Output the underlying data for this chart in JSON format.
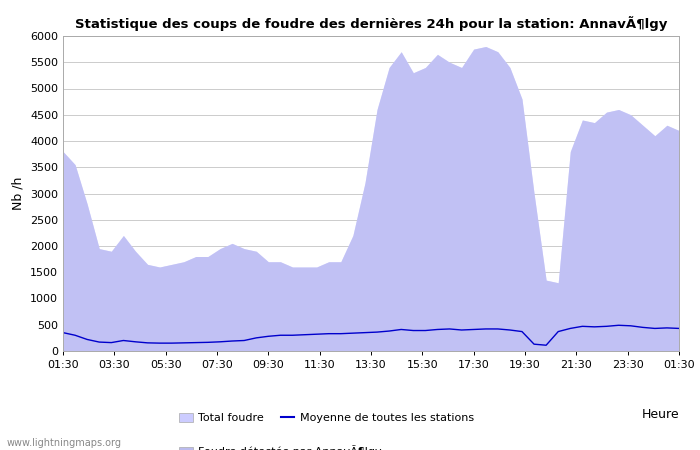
{
  "title": "Statistique des coups de foudre des dernières 24h pour la station: AnnavÃ¶lgy",
  "ylabel": "Nb /h",
  "xlabel_right": "Heure",
  "watermark": "www.lightningmaps.org",
  "x_labels": [
    "01:30",
    "03:30",
    "05:30",
    "07:30",
    "09:30",
    "11:30",
    "13:30",
    "15:30",
    "17:30",
    "19:30",
    "21:30",
    "23:30",
    "01:30"
  ],
  "ylim": [
    0,
    6000
  ],
  "yticks": [
    0,
    500,
    1000,
    1500,
    2000,
    2500,
    3000,
    3500,
    4000,
    4500,
    5000,
    5500,
    6000
  ],
  "bg_color": "#ffffff",
  "plot_bg_color": "#ffffff",
  "grid_color": "#cccccc",
  "fill_total_color": "#ccccff",
  "fill_local_color": "#bbbbee",
  "line_color": "#0000cc",
  "legend_total": "Total foudre",
  "legend_mean": "Moyenne de toutes les stations",
  "legend_local": "Foudre détectée par AnnavÃ¶lgy",
  "total_foudre": [
    3800,
    3550,
    2800,
    1950,
    1900,
    2200,
    1900,
    1650,
    1600,
    1650,
    1700,
    1800,
    1800,
    1950,
    2050,
    1950,
    1900,
    1700,
    1700,
    1600,
    1600,
    1600,
    1700,
    1700,
    2200,
    3200,
    4600,
    5400,
    5700,
    5300,
    5400,
    5650,
    5500,
    5400,
    5750,
    5800,
    5700,
    5400,
    4800,
    3000,
    1350,
    1300,
    3800,
    4400,
    4350,
    4550,
    4600,
    4500,
    4300,
    4100,
    4300,
    4200
  ],
  "local_foudre": [
    3800,
    3550,
    2800,
    1950,
    1900,
    2200,
    1900,
    1650,
    1600,
    1650,
    1700,
    1800,
    1800,
    1950,
    2050,
    1950,
    1900,
    1700,
    1700,
    1600,
    1600,
    1600,
    1700,
    1700,
    2200,
    3200,
    4600,
    5400,
    5700,
    5300,
    5400,
    5650,
    5500,
    5400,
    5750,
    5800,
    5700,
    5400,
    4800,
    3000,
    1350,
    1300,
    3800,
    4400,
    4350,
    4550,
    4600,
    4500,
    4300,
    4100,
    4300,
    4200
  ],
  "mean_line": [
    350,
    300,
    220,
    170,
    160,
    200,
    175,
    155,
    150,
    150,
    155,
    160,
    165,
    175,
    190,
    200,
    250,
    280,
    300,
    300,
    310,
    320,
    330,
    330,
    340,
    350,
    360,
    380,
    410,
    390,
    390,
    410,
    420,
    400,
    410,
    420,
    420,
    400,
    370,
    130,
    110,
    370,
    430,
    470,
    460,
    470,
    490,
    480,
    450,
    430,
    440,
    430
  ]
}
